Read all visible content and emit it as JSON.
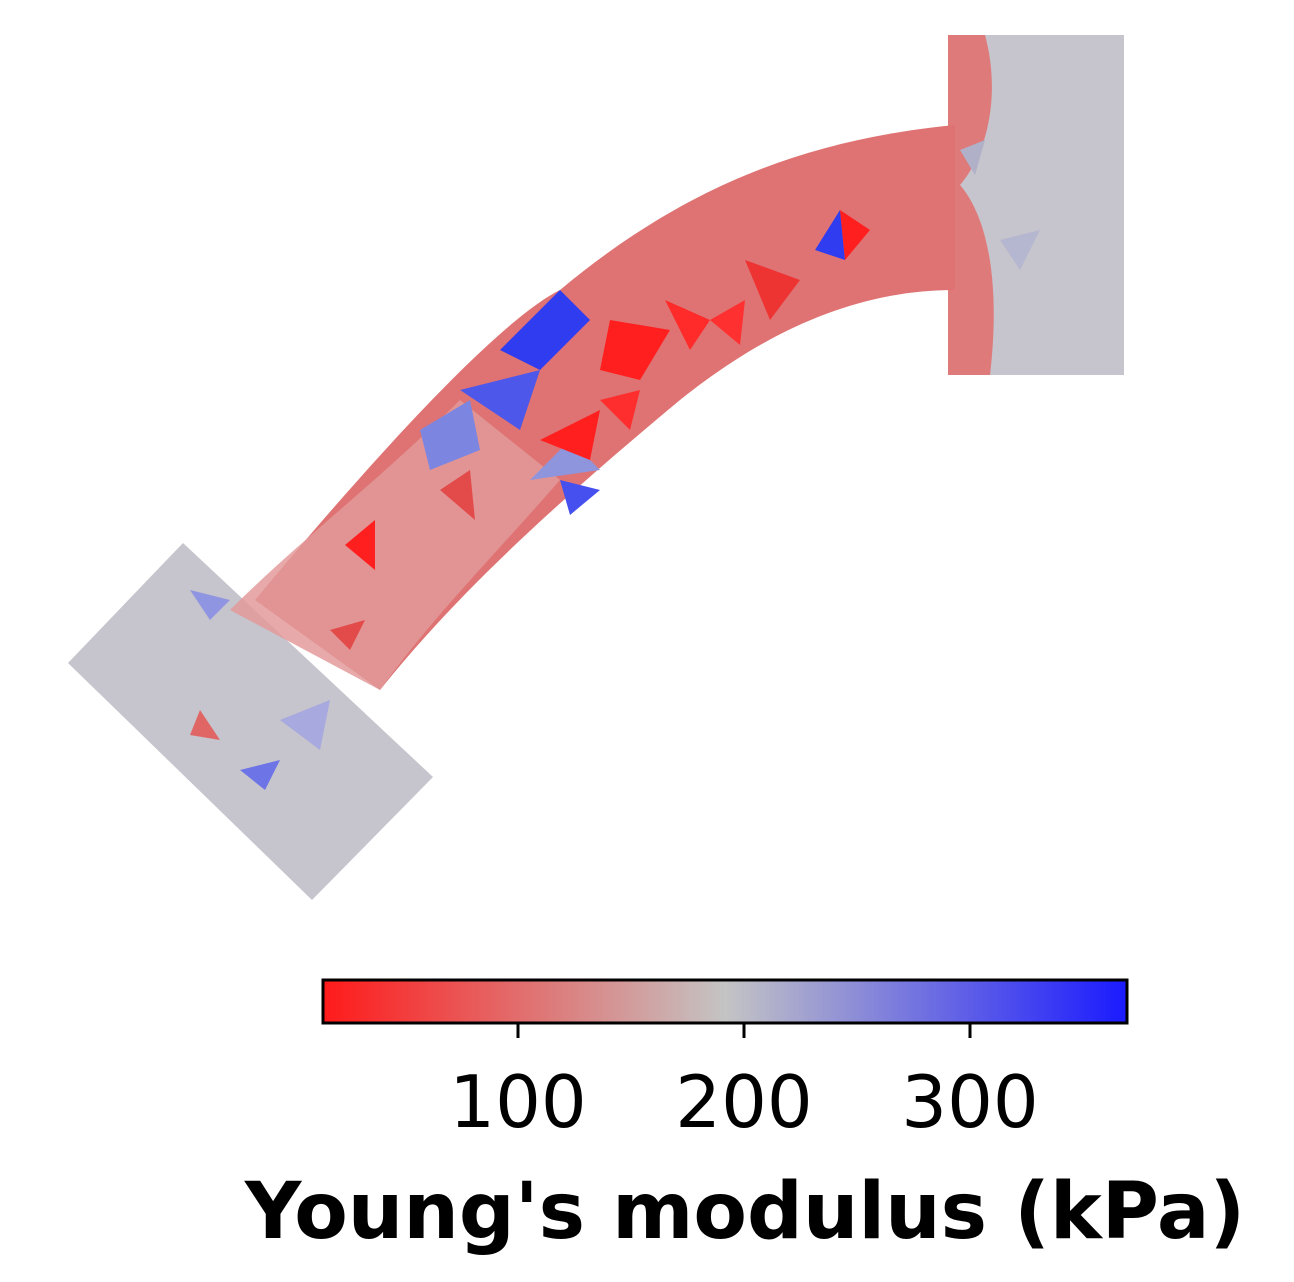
{
  "colorbar": {
    "title": "Young's modulus (kPa)",
    "ticks": [
      {
        "value": 100,
        "label": "100"
      },
      {
        "value": 200,
        "label": "200"
      },
      {
        "value": 300,
        "label": "300"
      }
    ],
    "min_color": "#ff1a1a",
    "mid_color": "#c4c4c4",
    "max_color": "#1a1aff"
  },
  "mesh": {
    "base_color": "#df7373",
    "grip_color": "#c6c4cc",
    "patch_colors": {
      "stiff": "#2f3cf0",
      "soft": "#ff1f1f",
      "medium_blue": "#7c86e0",
      "light_blue": "#a7a9df",
      "light_red": "#e9a0a0"
    }
  }
}
